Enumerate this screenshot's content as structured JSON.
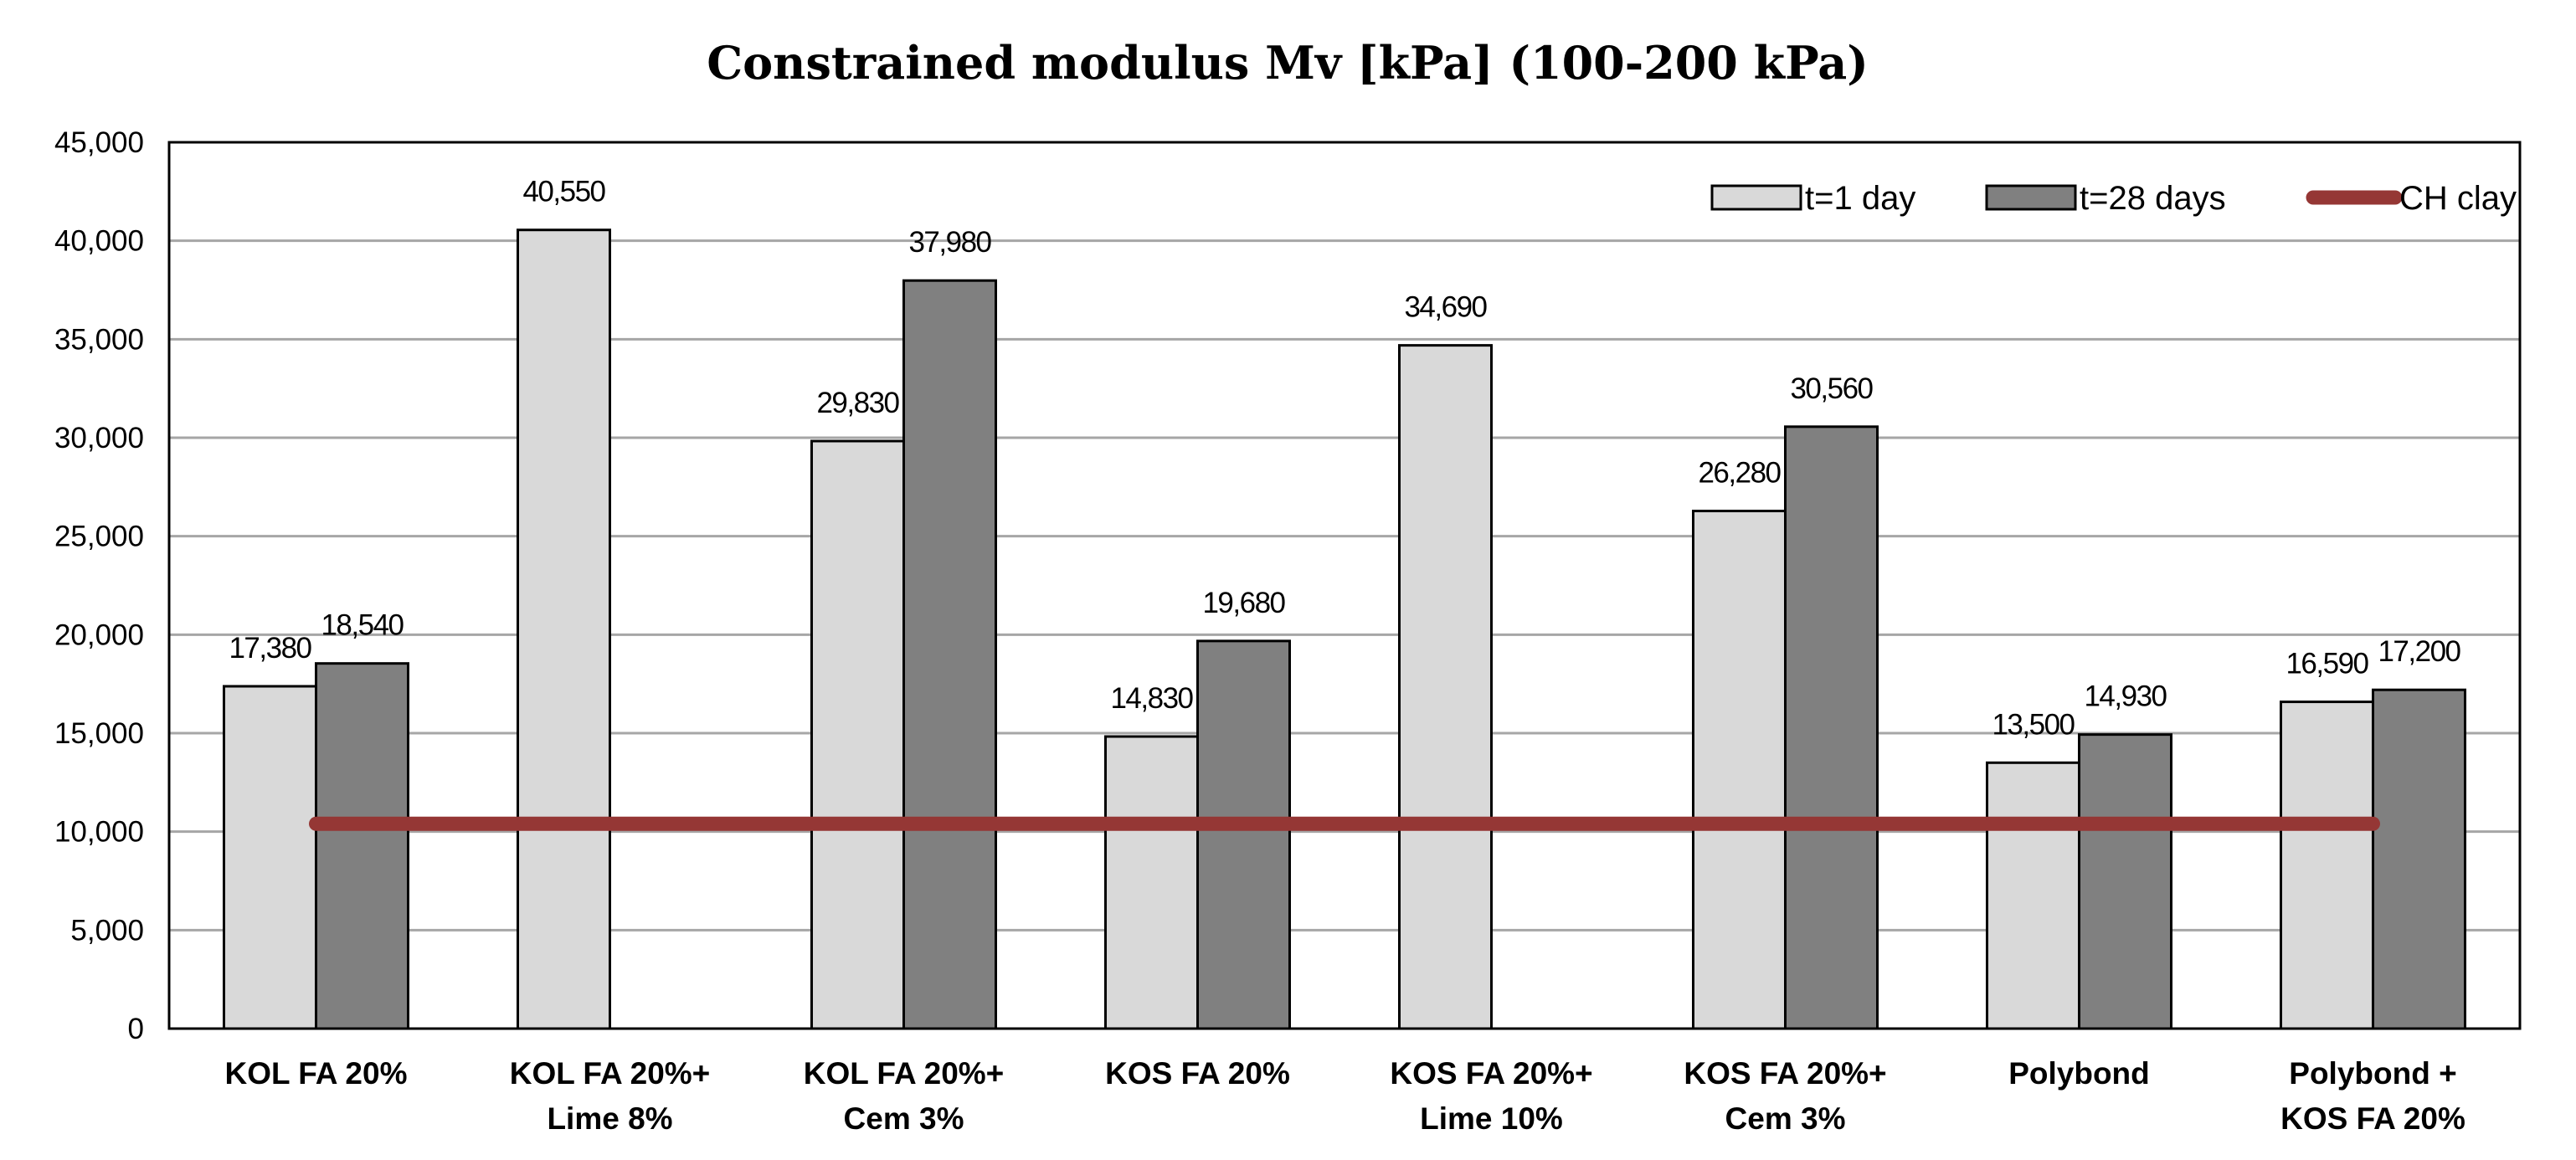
{
  "chart_data": {
    "type": "bar",
    "title": "Constrained modulus Mv [kPa] (100-200 kPa)",
    "xlabel": "",
    "ylabel": "",
    "ylim": [
      0,
      45000
    ],
    "yticks": [
      0,
      5000,
      10000,
      15000,
      20000,
      25000,
      30000,
      35000,
      40000,
      45000
    ],
    "ytick_labels": [
      "0",
      "5,000",
      "10,000",
      "15,000",
      "20,000",
      "25,000",
      "30,000",
      "35,000",
      "40,000",
      "45,000"
    ],
    "grid": true,
    "legend_position": "top-right",
    "categories": [
      [
        "KOL FA  20%"
      ],
      [
        "KOL FA 20%+",
        "Lime 8%"
      ],
      [
        "KOL FA 20%+",
        "Cem 3%"
      ],
      [
        "KOS FA 20%"
      ],
      [
        "KOS FA 20%+",
        "Lime 10%"
      ],
      [
        "KOS FA 20%+",
        "Cem 3%"
      ],
      [
        "Polybond"
      ],
      [
        "Polybond +",
        "KOS FA 20%"
      ]
    ],
    "series": [
      {
        "name": "t=1 day",
        "color": "#d9d9d9",
        "values": [
          17380,
          40550,
          29830,
          14830,
          34690,
          26280,
          13500,
          16590
        ],
        "labels": [
          "17,380",
          "40,550",
          "29,830",
          "14,830",
          "34,690",
          "26,280",
          "13,500",
          "16,590"
        ]
      },
      {
        "name": "t=28 days",
        "color": "#808080",
        "values": [
          18540,
          null,
          37980,
          19680,
          null,
          30560,
          14930,
          17200
        ],
        "labels": [
          "18,540",
          null,
          "37,980",
          "19,680",
          null,
          "30,560",
          "14,930",
          "17,200"
        ]
      }
    ],
    "reference_line": {
      "name": "CH clay",
      "color": "#953735",
      "value": 10400
    }
  }
}
